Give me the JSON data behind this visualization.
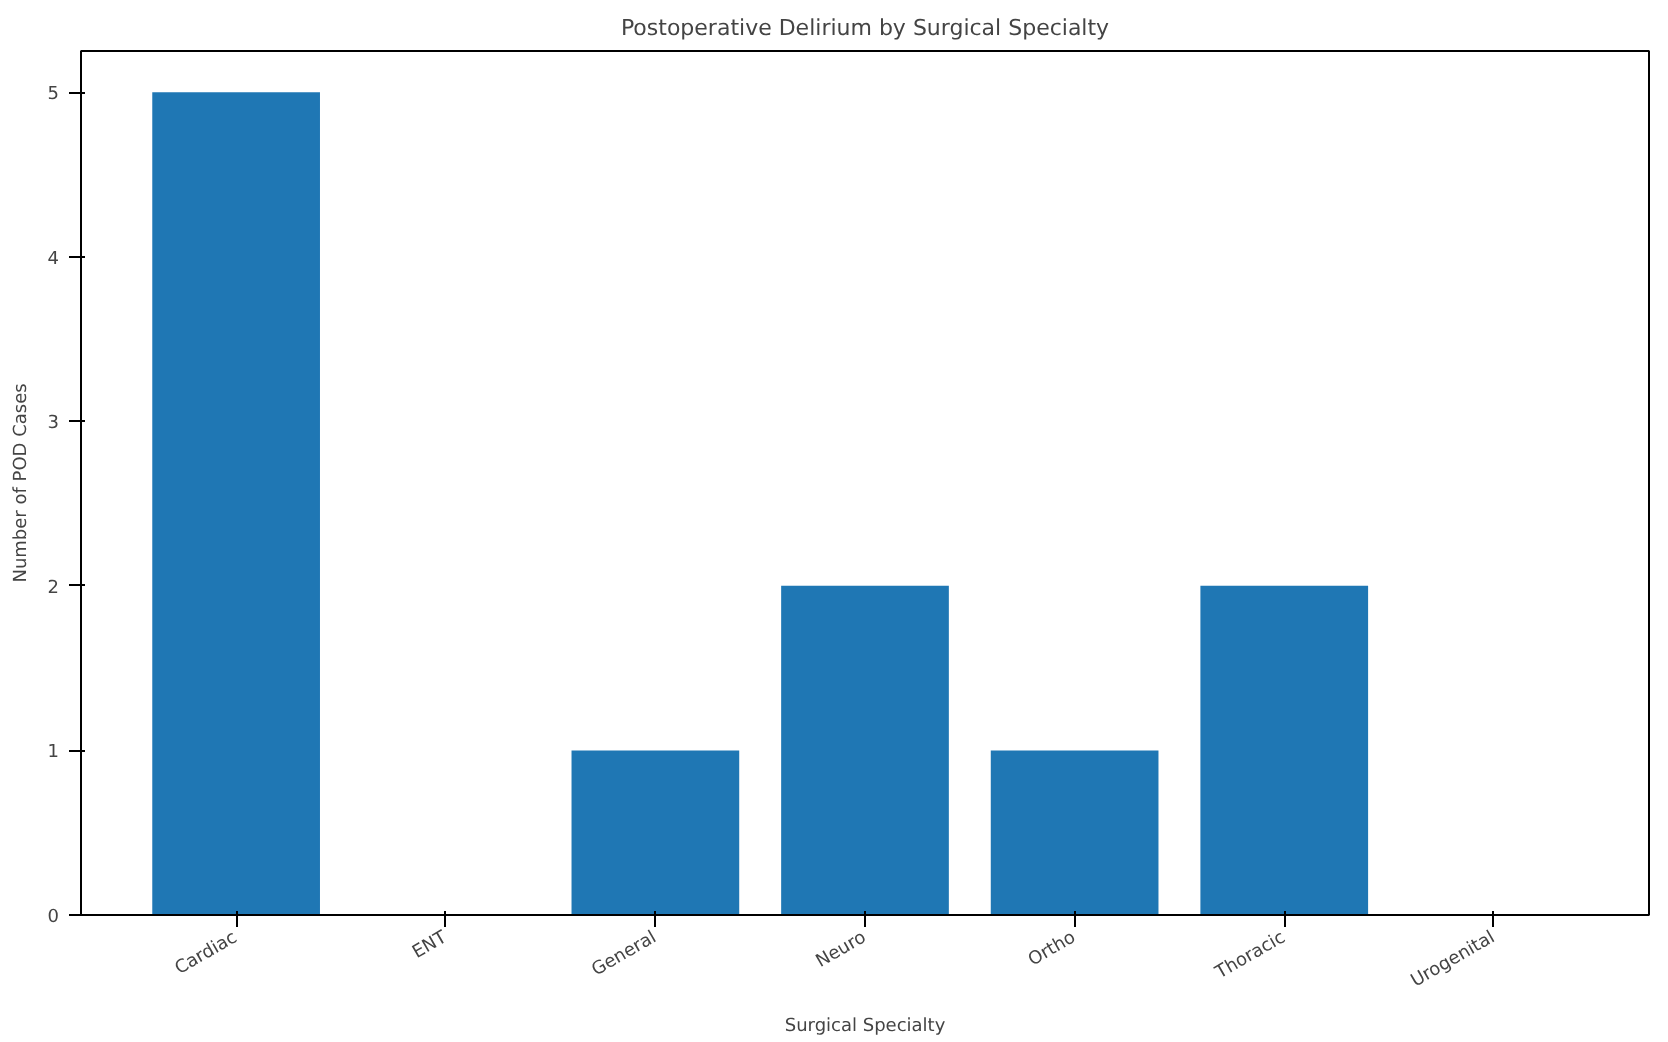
{
  "chart_data": {
    "type": "bar",
    "title": "Postoperative Delirium by Surgical Specialty",
    "xlabel": "Surgical Specialty",
    "ylabel": "Number of POD Cases",
    "categories": [
      "Cardiac",
      "ENT",
      "General",
      "Neuro",
      "Ortho",
      "Thoracic",
      "Urogenital"
    ],
    "values": [
      5,
      0,
      1,
      2,
      1,
      2,
      0
    ],
    "color": "#1f77b4",
    "ylim": [
      0,
      5.25
    ],
    "yticks": [
      0,
      1,
      2,
      3,
      4,
      5
    ],
    "grid": false
  }
}
